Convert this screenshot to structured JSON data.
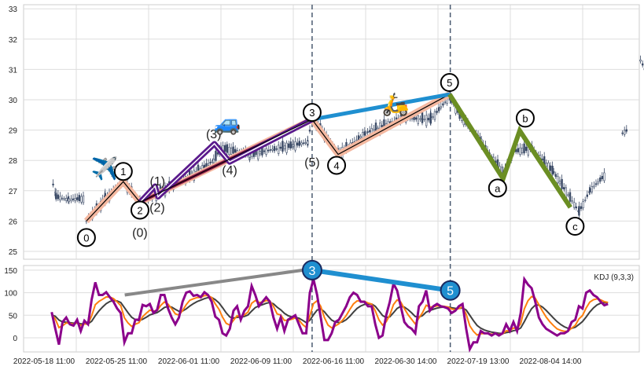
{
  "chart_data": [
    {
      "type": "candlestick",
      "title": "",
      "ylim": [
        24.7,
        33.2
      ],
      "yticks": [
        25,
        26,
        27,
        28,
        29,
        30,
        31,
        32,
        33
      ],
      "grid": true,
      "price_segments": [
        [
          [
            -0.32,
            27.2
          ],
          [
            -0.28,
            26.8
          ],
          [
            -0.1,
            26.7
          ],
          [
            0.1,
            26.75
          ]
        ],
        [
          [
            0.14,
            26.0
          ],
          [
            0.4,
            26.7
          ],
          [
            0.65,
            27.3
          ],
          [
            0.88,
            26.6
          ],
          [
            1.2,
            27.0
          ],
          [
            1.6,
            27.5
          ],
          [
            1.9,
            28.0
          ],
          [
            2.0,
            28.4
          ],
          [
            2.4,
            28.2
          ],
          [
            3.0,
            28.5
          ],
          [
            3.2,
            28.6
          ],
          [
            3.26,
            29.4
          ],
          [
            3.62,
            28.2
          ],
          [
            4.0,
            28.9
          ],
          [
            4.5,
            29.4
          ],
          [
            4.9,
            29.35
          ],
          [
            5.16,
            30.1
          ],
          [
            5.3,
            29.5
          ],
          [
            5.6,
            28.6
          ],
          [
            5.9,
            27.6
          ],
          [
            6.05,
            28.3
          ],
          [
            6.3,
            28.4
          ],
          [
            6.6,
            27.6
          ],
          [
            6.95,
            26.3
          ],
          [
            7.1,
            27.0
          ],
          [
            7.3,
            27.5
          ]
        ],
        [
          [
            7.55,
            28.9
          ],
          [
            7.62,
            29.0
          ]
        ],
        [
          [
            7.8,
            31.3
          ],
          [
            7.88,
            30.9
          ],
          [
            7.92,
            30.8
          ]
        ]
      ],
      "main_wave": {
        "labels": [
          "0",
          "1",
          "2",
          "3",
          "4",
          "5"
        ],
        "points": [
          [
            0.14,
            26.0
          ],
          [
            0.65,
            27.3
          ],
          [
            0.88,
            26.62
          ],
          [
            3.26,
            29.35
          ],
          [
            3.62,
            28.2
          ],
          [
            5.16,
            30.18
          ]
        ]
      },
      "sub_wave": {
        "labels": [
          "(0)",
          "(1)",
          "(2)",
          "(3)",
          "(4)",
          "(5)"
        ],
        "points": [
          [
            0.88,
            26.62
          ],
          [
            1.09,
            27.15
          ],
          [
            1.13,
            26.8
          ],
          [
            1.91,
            28.55
          ],
          [
            2.12,
            27.95
          ],
          [
            3.26,
            29.35
          ]
        ]
      },
      "correction_wave": {
        "labels": [
          "a",
          "b",
          "c"
        ],
        "points": [
          [
            5.16,
            30.18
          ],
          [
            5.9,
            27.4
          ],
          [
            6.13,
            28.98
          ],
          [
            6.83,
            26.45
          ]
        ]
      },
      "wave3_to_5_line": [
        [
          3.26,
          29.35
        ],
        [
          5.16,
          30.18
        ]
      ],
      "markers": [
        "airplane",
        "car",
        "scooter"
      ],
      "colors": {
        "impulse": "#f4b8a0",
        "sub": "#5a1a8c",
        "correction": "#6b8e23",
        "link": "#1f8fd0",
        "candle": "#3b4a66"
      }
    },
    {
      "type": "line",
      "legend": "KDJ (9,3,3)",
      "ylim": [
        -35,
        160
      ],
      "yticks": [
        0,
        50,
        100,
        150
      ],
      "x_start": -0.34,
      "x_end": 7.35,
      "J": [
        57,
        20,
        -15,
        35,
        45,
        30,
        27,
        40,
        15,
        38,
        30,
        85,
        123,
        95,
        95,
        101,
        90,
        80,
        65,
        55,
        -10,
        10,
        10,
        40,
        40,
        73,
        70,
        75,
        55,
        62,
        95,
        95,
        65,
        45,
        30,
        45,
        80,
        100,
        103,
        93,
        95,
        90,
        101,
        95,
        80,
        47,
        40,
        10,
        5,
        20,
        60,
        70,
        40,
        60,
        70,
        115,
        95,
        70,
        80,
        90,
        80,
        45,
        20,
        45,
        15,
        40,
        45,
        50,
        30,
        10,
        10,
        100,
        130,
        95,
        45,
        -5,
        -5,
        10,
        35,
        40,
        55,
        70,
        90,
        100,
        95,
        80,
        80,
        70,
        70,
        30,
        0,
        5,
        50,
        80,
        120,
        105,
        70,
        35,
        25,
        20,
        10,
        70,
        80,
        105,
        60,
        70,
        75,
        70,
        68,
        65,
        55,
        60,
        70,
        75,
        20,
        -25,
        -10,
        -10,
        15,
        10,
        10,
        5,
        10,
        5,
        10,
        30,
        15,
        35,
        15,
        55,
        130,
        118,
        110,
        80,
        45,
        30,
        20,
        15,
        10,
        5,
        10,
        10,
        15,
        35,
        40,
        70,
        65,
        100,
        105,
        95,
        90,
        80,
        72,
        75
      ],
      "divergence_line": [
        [
          0.67,
          95
        ],
        [
          3.13,
          150
        ]
      ],
      "peak_labels": [
        "3",
        "5"
      ],
      "peak_points": [
        [
          3.26,
          150
        ],
        [
          5.17,
          105
        ]
      ],
      "xticks": [
        "2022-05-18 11:00",
        "2022-05-25 11:00",
        "2022-06-01 11:00",
        "2022-06-09 11:00",
        "2022-06-16 11:00",
        "2022-06-30 14:00",
        "2022-07-19 13:00",
        "2022-08-04 14:00"
      ],
      "colors": {
        "J": "#8b008b",
        "K": "#ff7f0e",
        "D": "#404040"
      }
    }
  ]
}
